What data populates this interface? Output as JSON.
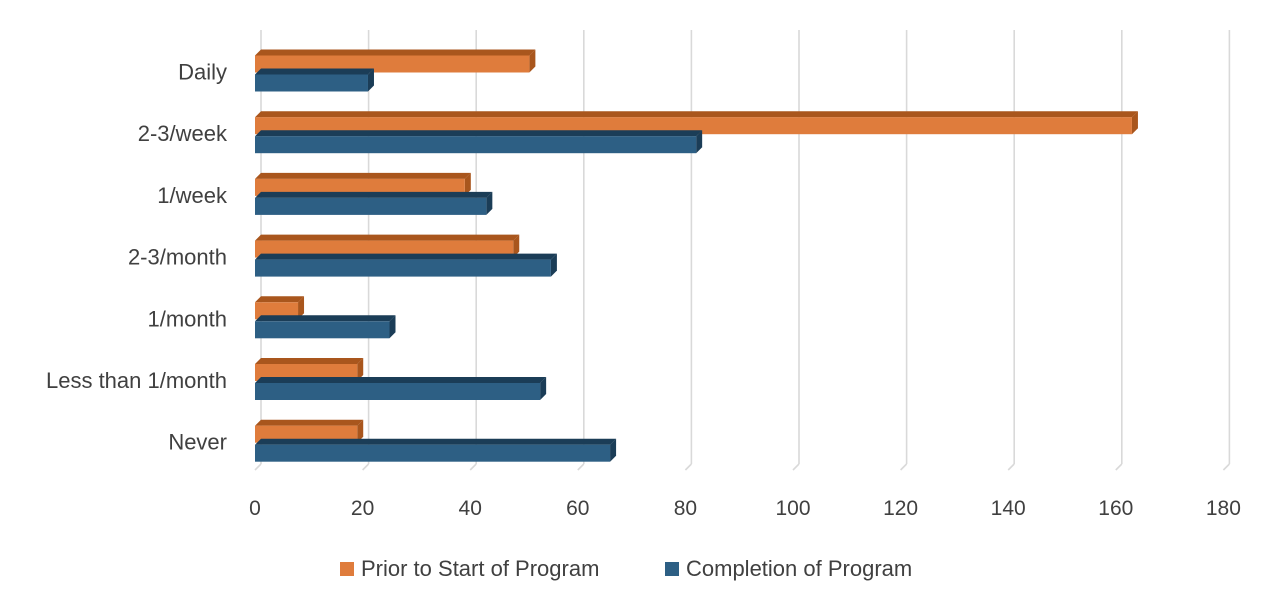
{
  "chart_data": {
    "type": "bar",
    "orientation": "horizontal",
    "style": "3d-clustered",
    "title": "",
    "xlabel": "",
    "ylabel": "",
    "categories": [
      "Daily",
      "2-3/week",
      "1/week",
      "2-3/month",
      "1/month",
      "Less than 1/month",
      "Never"
    ],
    "series": [
      {
        "name": "Prior to Start of Program",
        "color": "#df7c3c",
        "side_color": "#a9561d",
        "values": [
          51,
          163,
          39,
          48,
          8,
          19,
          19
        ]
      },
      {
        "name": "Completion of Program",
        "color": "#2d5f84",
        "side_color": "#1b3d57",
        "values": [
          21,
          82,
          43,
          55,
          25,
          53,
          66
        ]
      }
    ],
    "xlim": [
      0,
      180
    ],
    "xticks": [
      "0",
      "20",
      "40",
      "60",
      "80",
      "100",
      "120",
      "140",
      "160",
      "180"
    ],
    "grid": true,
    "legend_position": "bottom"
  }
}
